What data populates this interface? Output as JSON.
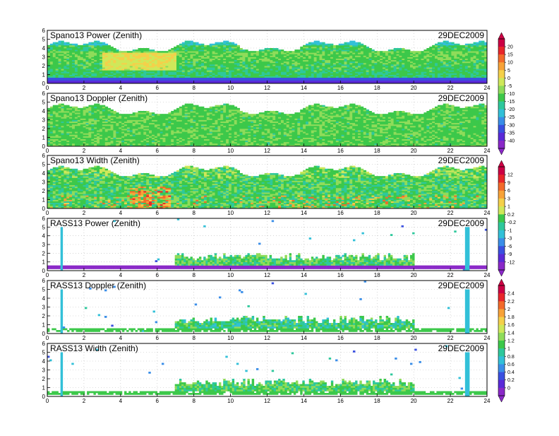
{
  "chart_data": [
    {
      "type": "heatmap",
      "title": "Spano13 Power (Zenith)",
      "date": "29DEC2009",
      "xlim": [
        0,
        24
      ],
      "ylim": [
        0,
        6
      ],
      "x_ticks": [
        "0",
        "2",
        "4",
        "6",
        "8",
        "10",
        "12",
        "14",
        "16",
        "18",
        "20",
        "22",
        "24"
      ],
      "y_ticks": [
        "0",
        "1",
        "2",
        "3",
        "4",
        "5",
        "6"
      ],
      "grid": true,
      "colorbar": "A",
      "pattern": "spano_power"
    },
    {
      "type": "heatmap",
      "title": "Spano13 Doppler (Zenith)",
      "date": "29DEC2009",
      "xlim": [
        0,
        24
      ],
      "ylim": [
        0,
        6
      ],
      "x_ticks": [
        "0",
        "2",
        "4",
        "6",
        "8",
        "10",
        "12",
        "14",
        "16",
        "18",
        "20",
        "22",
        "24"
      ],
      "y_ticks": [
        "0",
        "1",
        "2",
        "3",
        "4",
        "5",
        "6"
      ],
      "grid": true,
      "colorbar": "A",
      "pattern": "spano_doppler"
    },
    {
      "type": "heatmap",
      "title": "Spano13 Width (Zenith)",
      "date": "29DEC2009",
      "xlim": [
        0,
        24
      ],
      "ylim": [
        0,
        6
      ],
      "x_ticks": [
        "0",
        "2",
        "4",
        "6",
        "8",
        "10",
        "12",
        "14",
        "16",
        "18",
        "20",
        "22",
        "24"
      ],
      "y_ticks": [
        "0",
        "1",
        "2",
        "3",
        "4",
        "5",
        "6"
      ],
      "grid": true,
      "colorbar": "B",
      "pattern": "spano_width"
    },
    {
      "type": "heatmap",
      "title": "RASS13 Power (Zenith)",
      "date": "29DEC2009",
      "xlim": [
        0,
        24
      ],
      "ylim": [
        0,
        6
      ],
      "x_ticks": [
        "0",
        "2",
        "4",
        "6",
        "8",
        "10",
        "12",
        "14",
        "16",
        "18",
        "20",
        "22",
        "24"
      ],
      "y_ticks": [
        "0",
        "1",
        "2",
        "3",
        "4",
        "5",
        "6"
      ],
      "grid": true,
      "colorbar": "B",
      "pattern": "rass_power"
    },
    {
      "type": "heatmap",
      "title": "RASS13 Doppler (Zenith)",
      "date": "29DEC2009",
      "xlim": [
        0,
        24
      ],
      "ylim": [
        0,
        6
      ],
      "x_ticks": [
        "0",
        "2",
        "4",
        "6",
        "8",
        "10",
        "12",
        "14",
        "16",
        "18",
        "20",
        "22",
        "24"
      ],
      "y_ticks": [
        "0",
        "1",
        "2",
        "3",
        "4",
        "5",
        "6"
      ],
      "grid": true,
      "colorbar": "C",
      "pattern": "rass_doppler"
    },
    {
      "type": "heatmap",
      "title": "RASS13 Width (Zenith)",
      "date": "29DEC2009",
      "xlim": [
        0,
        24
      ],
      "ylim": [
        0,
        6
      ],
      "x_ticks": [
        "0",
        "2",
        "4",
        "6",
        "8",
        "10",
        "12",
        "14",
        "16",
        "18",
        "20",
        "22",
        "24"
      ],
      "y_ticks": [
        "0",
        "1",
        "2",
        "3",
        "4",
        "5",
        "6"
      ],
      "grid": true,
      "colorbar": "C",
      "pattern": "rass_width"
    }
  ],
  "colorbars": {
    "A": {
      "labels": [
        "20",
        "15",
        "10",
        "5",
        "0",
        "-5",
        "-10",
        "-15",
        "-20",
        "-25",
        "-30",
        "-35",
        "-40"
      ]
    },
    "B": {
      "labels": [
        "12",
        "9",
        "6",
        "3",
        "1",
        "0.2",
        "-0.2",
        "-1",
        "-3",
        "-6",
        "-9",
        "-12"
      ]
    },
    "C": {
      "labels": [
        "2.4",
        "2.2",
        "2",
        "1.8",
        "1.6",
        "1.4",
        "1.2",
        "1",
        "0.8",
        "0.6",
        "0.4",
        "0.2",
        "0"
      ]
    }
  },
  "palette": [
    "#cc0044",
    "#e8262a",
    "#f26a2a",
    "#f7a238",
    "#f4d04a",
    "#cfe85a",
    "#8fdc5a",
    "#3cc84a",
    "#2ec89c",
    "#32c0d8",
    "#3a8ee8",
    "#3a50e0",
    "#5a2ad8",
    "#8a28c8"
  ]
}
